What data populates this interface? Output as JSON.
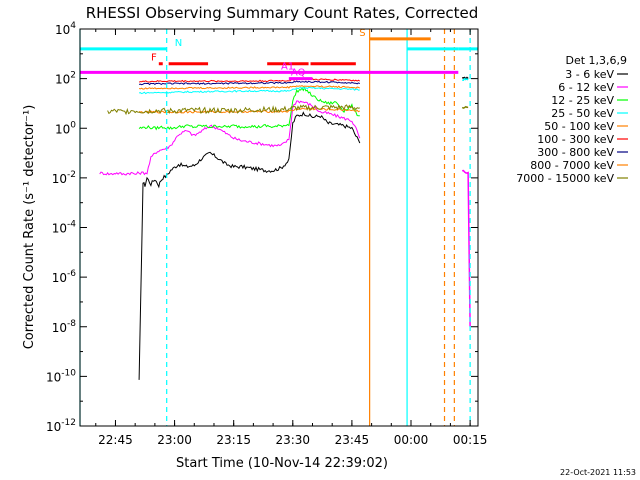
{
  "chart_data": {
    "type": "line",
    "title": "RHESSI Observing Summary Count Rates, Corrected",
    "xlabel": "Start Time (10-Nov-14 22:39:02)",
    "ylabel": "Corrected Count Rate (s⁻¹ detector⁻¹)",
    "ylog": true,
    "ylim": [
      1e-12,
      10000.0
    ],
    "xlim_minutes_from_start": [
      -3,
      98
    ],
    "xticks": [
      {
        "label": "22:45",
        "min": 6
      },
      {
        "label": "23:00",
        "min": 21
      },
      {
        "label": "23:15",
        "min": 36
      },
      {
        "label": "23:30",
        "min": 51
      },
      {
        "label": "23:45",
        "min": 66
      },
      {
        "label": "00:00",
        "min": 81
      },
      {
        "label": "00:15",
        "min": 96
      }
    ],
    "yticks": [
      {
        "exp": 4,
        "label": "10^4"
      },
      {
        "exp": 2,
        "label": "10^2"
      },
      {
        "exp": 0,
        "label": "10^0"
      },
      {
        "exp": -2,
        "label": "10^-2"
      },
      {
        "exp": -4,
        "label": "10^-4"
      },
      {
        "exp": -6,
        "label": "10^-6"
      },
      {
        "exp": -8,
        "label": "10^-8"
      },
      {
        "exp": -10,
        "label": "10^-10"
      },
      {
        "exp": -12,
        "label": "10^-12"
      }
    ],
    "legend_title": "Det 1,3,6,9",
    "legend_position": "right",
    "series": [
      {
        "name": "3 - 6 keV",
        "color": "#000000",
        "t": [
          12,
          13,
          13.5,
          14,
          15,
          16,
          17,
          17.5,
          18,
          19,
          20,
          22,
          24,
          26,
          28,
          30,
          32,
          34,
          36,
          38,
          40,
          42,
          44,
          46,
          48,
          50,
          51,
          52,
          54,
          56,
          58,
          60,
          62,
          64,
          66,
          67,
          68
        ],
        "y": [
          -10.2,
          -2.2,
          -2.3,
          -2.0,
          -2.25,
          -2.05,
          -2.3,
          -2.1,
          -2.0,
          -1.9,
          -1.7,
          -1.45,
          -1.55,
          -1.5,
          -1.2,
          -1.0,
          -1.2,
          -1.45,
          -1.55,
          -1.55,
          -1.6,
          -1.65,
          -1.7,
          -1.7,
          -1.6,
          -1.3,
          0.2,
          0.5,
          0.6,
          0.45,
          0.5,
          0.2,
          0.15,
          0.1,
          0.0,
          -0.3,
          -0.6
        ]
      },
      {
        "name": "6 - 12 keV",
        "color": "#ff00ff",
        "t": [
          2,
          5,
          6,
          8,
          10,
          11,
          12,
          14,
          15,
          16,
          17,
          18,
          19,
          20,
          22,
          24,
          26,
          28,
          30,
          32,
          34,
          36,
          38,
          40,
          42,
          44,
          46,
          48,
          50,
          51,
          52,
          54,
          56,
          58,
          60,
          62,
          64,
          66,
          67,
          68
        ],
        "y": [
          -1.8,
          -1.85,
          -1.8,
          -1.85,
          -1.8,
          -1.85,
          -1.8,
          -1.8,
          -1.2,
          -1.0,
          -0.9,
          -0.85,
          -0.8,
          -0.7,
          -0.25,
          -0.1,
          -0.3,
          -0.1,
          0.1,
          0.0,
          -0.2,
          -0.4,
          -0.5,
          -0.55,
          -0.6,
          -0.65,
          -0.7,
          -0.7,
          -0.45,
          0.85,
          1.1,
          1.05,
          0.9,
          0.65,
          0.6,
          0.5,
          0.4,
          0.3,
          0.0,
          -0.4
        ]
      },
      {
        "name": "12 - 25 keV",
        "color": "#00ff00",
        "t": [
          12,
          14,
          16,
          18,
          20,
          22,
          24,
          26,
          28,
          30,
          32,
          34,
          36,
          38,
          40,
          42,
          44,
          46,
          48,
          50,
          51,
          52,
          54,
          56,
          58,
          60,
          62,
          64,
          66,
          67,
          68
        ],
        "y": [
          0.0,
          0.05,
          0.0,
          0.05,
          0.0,
          0.05,
          0.1,
          0.05,
          0.1,
          0.05,
          0.1,
          0.05,
          0.1,
          0.05,
          0.1,
          0.05,
          0.1,
          0.05,
          0.1,
          0.15,
          1.1,
          1.5,
          1.6,
          1.3,
          1.1,
          1.0,
          1.05,
          0.7,
          0.9,
          0.6,
          0.5
        ]
      },
      {
        "name": "25 - 50 keV",
        "color": "#00ffff",
        "t": [
          12,
          20,
          30,
          40,
          50,
          51,
          52,
          55,
          60,
          65,
          68
        ],
        "y": [
          1.42,
          1.45,
          1.48,
          1.5,
          1.5,
          1.55,
          1.62,
          1.62,
          1.6,
          1.58,
          1.55
        ]
      },
      {
        "name": "50 - 100 keV",
        "color": "#ff8000",
        "t": [
          12,
          20,
          30,
          40,
          50,
          51,
          52,
          55,
          60,
          65,
          68
        ],
        "y": [
          0.65,
          0.65,
          0.66,
          0.67,
          0.68,
          0.72,
          0.78,
          0.78,
          0.76,
          0.74,
          0.7
        ]
      },
      {
        "name": "100 - 300 keV",
        "color": "#ff0000",
        "t": [
          12,
          20,
          30,
          40,
          50,
          51,
          52,
          55,
          60,
          65,
          68
        ],
        "y": [
          1.88,
          1.9,
          1.9,
          1.9,
          1.92,
          1.95,
          1.98,
          1.97,
          1.96,
          1.95,
          1.9
        ]
      },
      {
        "name": "300 - 800 keV",
        "color": "#000080",
        "t": [
          12,
          20,
          30,
          40,
          50,
          51,
          52,
          55,
          60,
          65,
          68
        ],
        "y": [
          1.78,
          1.8,
          1.8,
          1.82,
          1.83,
          1.86,
          1.88,
          1.87,
          1.86,
          1.84,
          1.8
        ]
      },
      {
        "name": "800 - 7000 keV",
        "color": "#ff8000",
        "t": [
          12,
          20,
          30,
          40,
          50,
          51,
          52,
          55,
          60,
          65,
          68
        ],
        "y": [
          1.6,
          1.62,
          1.62,
          1.64,
          1.65,
          1.68,
          1.7,
          1.69,
          1.68,
          1.66,
          1.62
        ]
      },
      {
        "name": "7000 - 15000 keV",
        "color": "#808000",
        "t": [
          4,
          6,
          8,
          10,
          12,
          14,
          16,
          18,
          20,
          24,
          28,
          32,
          36,
          40,
          44,
          48,
          50,
          51,
          52,
          55,
          58,
          62,
          66,
          68
        ],
        "y": [
          0.65,
          0.7,
          0.65,
          0.72,
          0.7,
          0.68,
          0.72,
          0.7,
          0.7,
          0.72,
          0.72,
          0.72,
          0.72,
          0.74,
          0.75,
          0.75,
          0.78,
          0.8,
          0.82,
          0.82,
          0.84,
          0.84,
          0.84,
          0.82
        ]
      }
    ],
    "post_gap_segments": [
      {
        "series": 0,
        "t": [
          94,
          95.5
        ],
        "y": [
          2.0,
          2.0
        ]
      },
      {
        "series": 1,
        "t": [
          94,
          95.5,
          96
        ],
        "y": [
          -1.7,
          -1.8,
          -8.0
        ]
      },
      {
        "series": 8,
        "t": [
          94,
          95.5
        ],
        "y": [
          0.8,
          0.85
        ]
      },
      {
        "series": 3,
        "t": [
          94,
          95.5
        ],
        "y": [
          1.95,
          1.95
        ]
      }
    ],
    "annotations": [
      {
        "label": "N",
        "color": "#00ffff",
        "t0": -3,
        "t1": 19,
        "y": 3.2
      },
      {
        "label": "F",
        "color": "#ff0000",
        "t0": 17,
        "t1": 18,
        "y": 2.6
      },
      {
        "label": "",
        "color": "#ff0000",
        "t0": 19.5,
        "t1": 29.5,
        "y": 2.6
      },
      {
        "label": "",
        "color": "#ff0000",
        "t0": 44.5,
        "t1": 55,
        "y": 2.6
      },
      {
        "label": "",
        "color": "#ff0000",
        "t0": 55.5,
        "t1": 67,
        "y": 2.6
      },
      {
        "label": "A1",
        "color": "#ff00ff",
        "t0": -3,
        "t1": 93,
        "y": 2.25
      },
      {
        "label": "AQ",
        "color": "#ff00ff",
        "t0": 50,
        "t1": 56,
        "y": 2.0
      },
      {
        "label": "S",
        "color": "#ff8000",
        "t0": 70.5,
        "t1": 86,
        "y": 3.6
      },
      {
        "label": "",
        "color": "#00ffff",
        "t0": 80,
        "t1": 93,
        "y": 3.2
      },
      {
        "label": "",
        "color": "#00ffff",
        "t0": 93,
        "t1": 98,
        "y": 3.2
      }
    ],
    "vlines": [
      {
        "t": -3,
        "color": "#00ffff",
        "style": "solid"
      },
      {
        "t": 19,
        "color": "#00ffff",
        "style": "dashed"
      },
      {
        "t": 70.5,
        "color": "#ff8000",
        "style": "solid"
      },
      {
        "t": 80,
        "color": "#00ffff",
        "style": "solid"
      },
      {
        "t": 89.5,
        "color": "#ff8000",
        "style": "dashed"
      },
      {
        "t": 92,
        "color": "#ff8000",
        "style": "dashed"
      },
      {
        "t": 96,
        "color": "#00ffff",
        "style": "dashed"
      }
    ],
    "timestamp": "22-Oct-2021 11:53"
  }
}
